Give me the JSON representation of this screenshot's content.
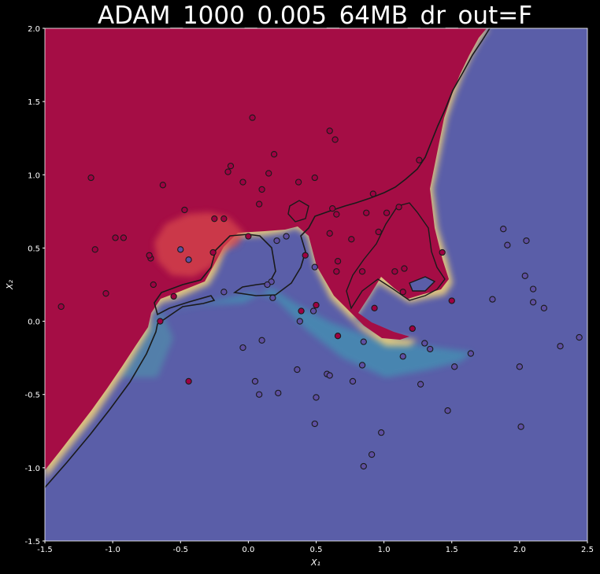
{
  "chart_data": {
    "type": "scatter",
    "title": "ADAM_1000_0.005_64MB_dr_out=F",
    "xlabel": "X₁",
    "ylabel": "X₂",
    "xlim": [
      -1.5,
      2.5
    ],
    "ylim": [
      -1.5,
      2.0
    ],
    "xticks": [
      "-1.5",
      "-1.0",
      "-0.5",
      "0.0",
      "0.5",
      "1.0",
      "1.5",
      "2.0",
      "2.5"
    ],
    "yticks": [
      "-1.5",
      "-1.0",
      "-0.5",
      "0.0",
      "0.5",
      "1.0",
      "1.5",
      "2.0"
    ],
    "grid": false,
    "legend": "none",
    "colors": {
      "class0": "#5e4fa2",
      "class1": "#9e0142",
      "boundary": "#1a1a1a"
    },
    "series": [
      {
        "class": 0,
        "points": [
          [
            0.05,
            -0.41
          ],
          [
            0.1,
            -0.13
          ],
          [
            0.22,
            -0.49
          ],
          [
            0.08,
            -0.5
          ],
          [
            -0.04,
            -0.18
          ],
          [
            0.36,
            -0.33
          ],
          [
            0.5,
            -0.52
          ],
          [
            0.58,
            -0.36
          ],
          [
            0.6,
            -0.37
          ],
          [
            0.77,
            -0.41
          ],
          [
            0.49,
            -0.7
          ],
          [
            0.84,
            -0.3
          ],
          [
            0.98,
            -0.76
          ],
          [
            0.91,
            -0.91
          ],
          [
            0.85,
            -0.99
          ],
          [
            0.85,
            -0.14
          ],
          [
            1.14,
            -0.24
          ],
          [
            1.27,
            -0.43
          ],
          [
            1.3,
            -0.15
          ],
          [
            1.34,
            -0.19
          ],
          [
            1.52,
            -0.31
          ],
          [
            1.47,
            -0.61
          ],
          [
            1.64,
            -0.22
          ],
          [
            1.8,
            0.15
          ],
          [
            1.88,
            0.63
          ],
          [
            1.91,
            0.52
          ],
          [
            2.05,
            0.55
          ],
          [
            2.04,
            0.31
          ],
          [
            2.1,
            0.22
          ],
          [
            2.1,
            0.13
          ],
          [
            2.18,
            0.09
          ],
          [
            2.0,
            -0.31
          ],
          [
            2.01,
            -0.72
          ],
          [
            2.3,
            -0.17
          ],
          [
            2.44,
            -0.11
          ],
          [
            0.38,
            0.0
          ],
          [
            0.48,
            0.07
          ],
          [
            0.49,
            0.37
          ],
          [
            0.17,
            0.27
          ],
          [
            0.14,
            0.25
          ],
          [
            0.28,
            0.58
          ],
          [
            -0.18,
            0.2
          ],
          [
            -0.44,
            0.42
          ],
          [
            -0.5,
            0.49
          ],
          [
            0.21,
            0.55
          ],
          [
            0.18,
            0.16
          ]
        ]
      },
      {
        "class": 1,
        "points": [
          [
            -1.38,
            0.1
          ],
          [
            -1.13,
            0.49
          ],
          [
            -1.16,
            0.98
          ],
          [
            -0.98,
            0.57
          ],
          [
            -0.92,
            0.57
          ],
          [
            -1.05,
            0.19
          ],
          [
            -0.72,
            0.43
          ],
          [
            -0.73,
            0.45
          ],
          [
            -0.7,
            0.25
          ],
          [
            -0.63,
            0.93
          ],
          [
            -0.65,
            0.0
          ],
          [
            -0.55,
            0.17
          ],
          [
            -0.47,
            0.76
          ],
          [
            -0.44,
            -0.41
          ],
          [
            -0.26,
            0.47
          ],
          [
            -0.25,
            0.7
          ],
          [
            -0.18,
            0.7
          ],
          [
            -0.15,
            1.02
          ],
          [
            -0.13,
            1.06
          ],
          [
            -0.04,
            0.95
          ],
          [
            0.0,
            0.58
          ],
          [
            0.03,
            1.39
          ],
          [
            0.08,
            0.8
          ],
          [
            0.1,
            0.9
          ],
          [
            0.15,
            1.01
          ],
          [
            0.19,
            1.14
          ],
          [
            0.37,
            0.95
          ],
          [
            0.49,
            0.98
          ],
          [
            0.42,
            0.45
          ],
          [
            0.39,
            0.07
          ],
          [
            0.5,
            0.11
          ],
          [
            0.6,
            1.3
          ],
          [
            0.64,
            1.24
          ],
          [
            0.62,
            0.77
          ],
          [
            0.65,
            0.73
          ],
          [
            0.6,
            0.6
          ],
          [
            0.76,
            0.56
          ],
          [
            0.65,
            0.34
          ],
          [
            0.66,
            0.41
          ],
          [
            0.84,
            0.34
          ],
          [
            0.87,
            0.74
          ],
          [
            0.92,
            0.87
          ],
          [
            0.96,
            0.61
          ],
          [
            1.02,
            0.74
          ],
          [
            1.11,
            0.78
          ],
          [
            1.08,
            0.34
          ],
          [
            1.15,
            0.36
          ],
          [
            1.26,
            1.1
          ],
          [
            1.14,
            0.2
          ],
          [
            1.21,
            -0.05
          ],
          [
            1.43,
            0.47
          ],
          [
            1.5,
            0.14
          ],
          [
            0.93,
            0.09
          ],
          [
            0.66,
            -0.1
          ]
        ]
      }
    ]
  }
}
